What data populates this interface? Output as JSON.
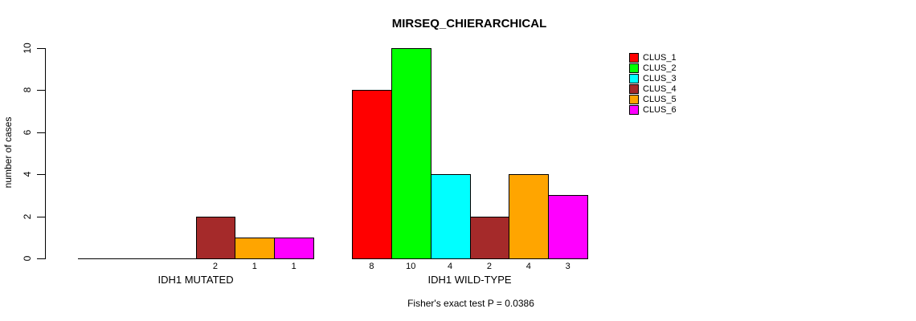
{
  "chart_data": {
    "type": "bar",
    "title": "MIRSEQ_CHIERARCHICAL",
    "ylabel": "number of cases",
    "xlabel": "",
    "ylim": [
      0,
      10
    ],
    "yticks": [
      0,
      2,
      4,
      6,
      8,
      10
    ],
    "grid": false,
    "legend_position": "right",
    "categories": [
      "IDH1 MUTATED",
      "IDH1 WILD-TYPE"
    ],
    "series": [
      {
        "name": "CLUS_1",
        "color": "#FF0000"
      },
      {
        "name": "CLUS_2",
        "color": "#00FF00"
      },
      {
        "name": "CLUS_3",
        "color": "#00FFFF"
      },
      {
        "name": "CLUS_4",
        "color": "#A52A2A"
      },
      {
        "name": "CLUS_5",
        "color": "#FFA500"
      },
      {
        "name": "CLUS_6",
        "color": "#FF00FF"
      }
    ],
    "groups": [
      {
        "label": "IDH1 MUTATED",
        "values": [
          0,
          0,
          0,
          2,
          1,
          1
        ],
        "bar_labels": [
          "",
          "",
          "",
          "2",
          "1",
          "1"
        ]
      },
      {
        "label": "IDH1 WILD-TYPE",
        "values": [
          8,
          10,
          4,
          2,
          4,
          3
        ],
        "bar_labels": [
          "8",
          "10",
          "4",
          "2",
          "4",
          "3"
        ]
      }
    ],
    "annotation": "Fisher's exact test P = 0.0386",
    "axis_color": "#000000",
    "bar_border_color": "#000000"
  }
}
